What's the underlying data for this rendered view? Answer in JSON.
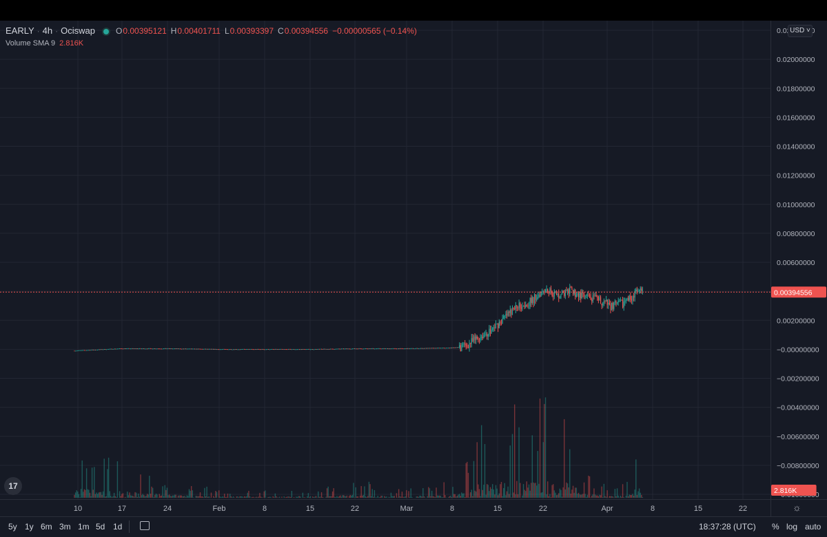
{
  "legend": {
    "symbol": "EARLY",
    "interval": "4h",
    "exchange": "Ociswap",
    "open_label": "O",
    "open": "0.00395121",
    "high_label": "H",
    "high": "0.00401711",
    "low_label": "L",
    "low": "0.00393397",
    "close_label": "C",
    "close": "0.00394556",
    "change": "−0.00000565 (−0.14%)",
    "volume_label": "Volume",
    "volume_ma": "SMA 9",
    "volume_value": "2.816K"
  },
  "currency": "USD",
  "price_scale": {
    "labels": [
      "0.02200000",
      "0.02000000",
      "0.01800000",
      "0.01600000",
      "0.01400000",
      "0.01200000",
      "0.01000000",
      "0.00800000",
      "0.00600000",
      "0.00400000",
      "0.00200000",
      "−0.00000000",
      "−0.00200000",
      "−0.00400000",
      "−0.00600000",
      "−0.00800000",
      "−0.01000000"
    ],
    "last_price_label": "0.00394556",
    "volume_label": "2.816K"
  },
  "time_axis": {
    "labels": [
      "10",
      "17",
      "24",
      "Feb",
      "8",
      "15",
      "22",
      "Mar",
      "8",
      "15",
      "22",
      "Apr",
      "8",
      "15",
      "22"
    ]
  },
  "bottom_toolbar": {
    "ranges": [
      "5y",
      "1y",
      "6m",
      "3m",
      "1m",
      "5d",
      "1d"
    ],
    "clock": "18:37:28 (UTC)",
    "percent": "%",
    "log": "log",
    "auto": "auto"
  },
  "colors": {
    "up": "#26a69a",
    "down": "#ef5350",
    "background": "#161a25",
    "grid": "#232733",
    "last_price_line": "#ef5350"
  },
  "chart_data": {
    "type": "candlestick",
    "interval": "4h",
    "x_start": "Jan 10",
    "x_end": "Apr 5",
    "ylim": [
      -0.011,
      0.023
    ],
    "x": [
      "Jan 10",
      "Jan 17",
      "Jan 24",
      "Feb 1",
      "Feb 8",
      "Feb 15",
      "Feb 22",
      "Mar 1",
      "Mar 8",
      "Mar 10",
      "Mar 12",
      "Mar 14",
      "Mar 16",
      "Mar 18",
      "Mar 20",
      "Mar 22",
      "Mar 24",
      "Mar 26",
      "Mar 28",
      "Mar 30",
      "Apr 1",
      "Apr 3",
      "Apr 5"
    ],
    "close": [
      -0.0001,
      5e-05,
      5e-05,
      0.0,
      0.0,
      0.0,
      5e-05,
      5e-05,
      0.0001,
      0.0002,
      0.0008,
      0.0013,
      0.0022,
      0.003,
      0.0033,
      0.0042,
      0.0037,
      0.004,
      0.0036,
      0.0034,
      0.003,
      0.0032,
      0.00394556
    ],
    "volume_peak": [
      3,
      2,
      1,
      0.5,
      0.5,
      0.5,
      1,
      0.5,
      1,
      2,
      4.5,
      4,
      5.5,
      5,
      5,
      6.5,
      4,
      5,
      1.5,
      1,
      0.5,
      1,
      2.816
    ],
    "last_price": 0.00394556,
    "volume_sma9": "2.816K"
  }
}
